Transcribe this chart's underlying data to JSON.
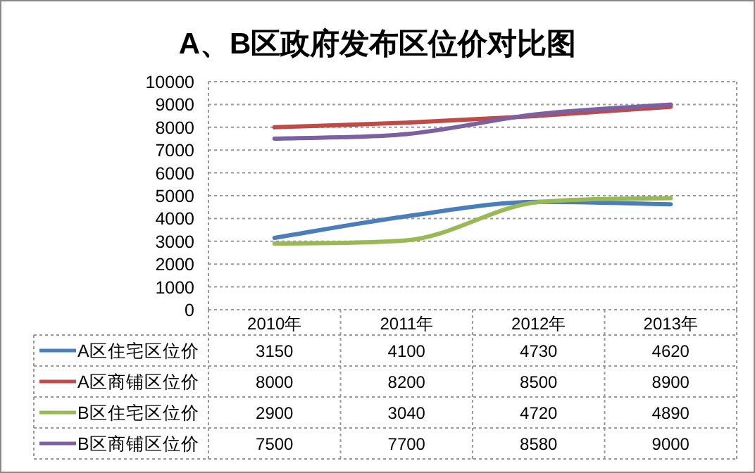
{
  "chart_data": {
    "type": "line",
    "title": "A、B区政府发布区位价对比图",
    "categories": [
      "2010年",
      "2011年",
      "2012年",
      "2013年"
    ],
    "series": [
      {
        "name": "A区住宅区位价",
        "color": "#4a7ebb",
        "values": [
          3150,
          4100,
          4730,
          4620
        ]
      },
      {
        "name": "A区商铺区位价",
        "color": "#be4b48",
        "values": [
          8000,
          8200,
          8500,
          8900
        ]
      },
      {
        "name": "B区住宅区位价",
        "color": "#98b954",
        "values": [
          2900,
          3040,
          4720,
          4890
        ]
      },
      {
        "name": "B区商铺区位价",
        "color": "#7d60a0",
        "values": [
          7500,
          7700,
          8580,
          9000
        ]
      }
    ],
    "ylim": [
      0,
      10000
    ],
    "yticks": [
      0,
      1000,
      2000,
      3000,
      4000,
      5000,
      6000,
      7000,
      8000,
      9000,
      10000
    ],
    "grid": "y",
    "legend": "bottom",
    "data_labels": true,
    "marker": "none",
    "line_style": "solid"
  }
}
